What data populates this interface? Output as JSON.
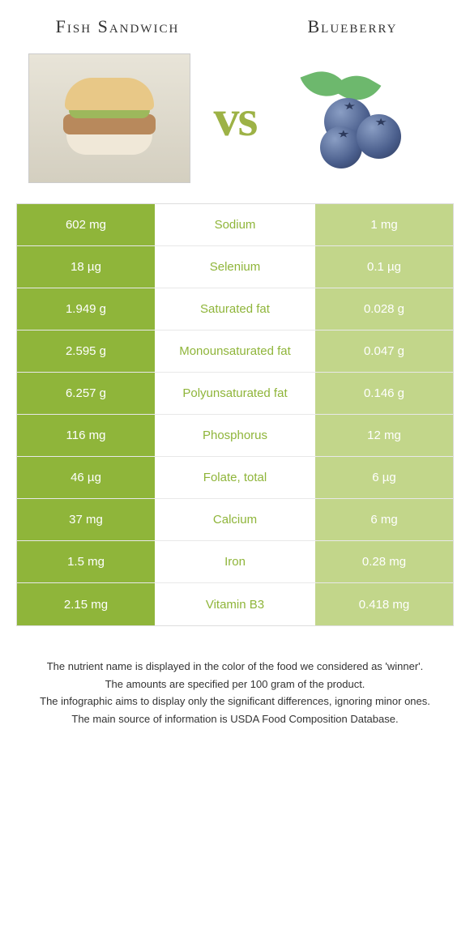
{
  "header": {
    "food_a": "Fish Sandwich",
    "food_b": "Blueberry",
    "vs": "vs"
  },
  "colors": {
    "left_color": "#8fb53a",
    "left_light": "#c2d68a",
    "right_color": "#4a5e8c",
    "right_light": "#9aa8c4"
  },
  "rows": [
    {
      "left": "602 mg",
      "label": "Sodium",
      "right": "1 mg",
      "winner": "left"
    },
    {
      "left": "18 µg",
      "label": "Selenium",
      "right": "0.1 µg",
      "winner": "left"
    },
    {
      "left": "1.949 g",
      "label": "Saturated fat",
      "right": "0.028 g",
      "winner": "left"
    },
    {
      "left": "2.595 g",
      "label": "Monounsaturated fat",
      "right": "0.047 g",
      "winner": "left"
    },
    {
      "left": "6.257 g",
      "label": "Polyunsaturated fat",
      "right": "0.146 g",
      "winner": "left"
    },
    {
      "left": "116 mg",
      "label": "Phosphorus",
      "right": "12 mg",
      "winner": "left"
    },
    {
      "left": "46 µg",
      "label": "Folate, total",
      "right": "6 µg",
      "winner": "left"
    },
    {
      "left": "37 mg",
      "label": "Calcium",
      "right": "6 mg",
      "winner": "left"
    },
    {
      "left": "1.5 mg",
      "label": "Iron",
      "right": "0.28 mg",
      "winner": "left"
    },
    {
      "left": "2.15 mg",
      "label": "Vitamin B3",
      "right": "0.418 mg",
      "winner": "left"
    }
  ],
  "footnotes": [
    "The nutrient name is displayed in the color of the food we considered as 'winner'.",
    "The amounts are specified per 100 gram of the product.",
    "The infographic aims to display only the significant differences, ignoring minor ones.",
    "The main source of information is USDA Food Composition Database."
  ]
}
